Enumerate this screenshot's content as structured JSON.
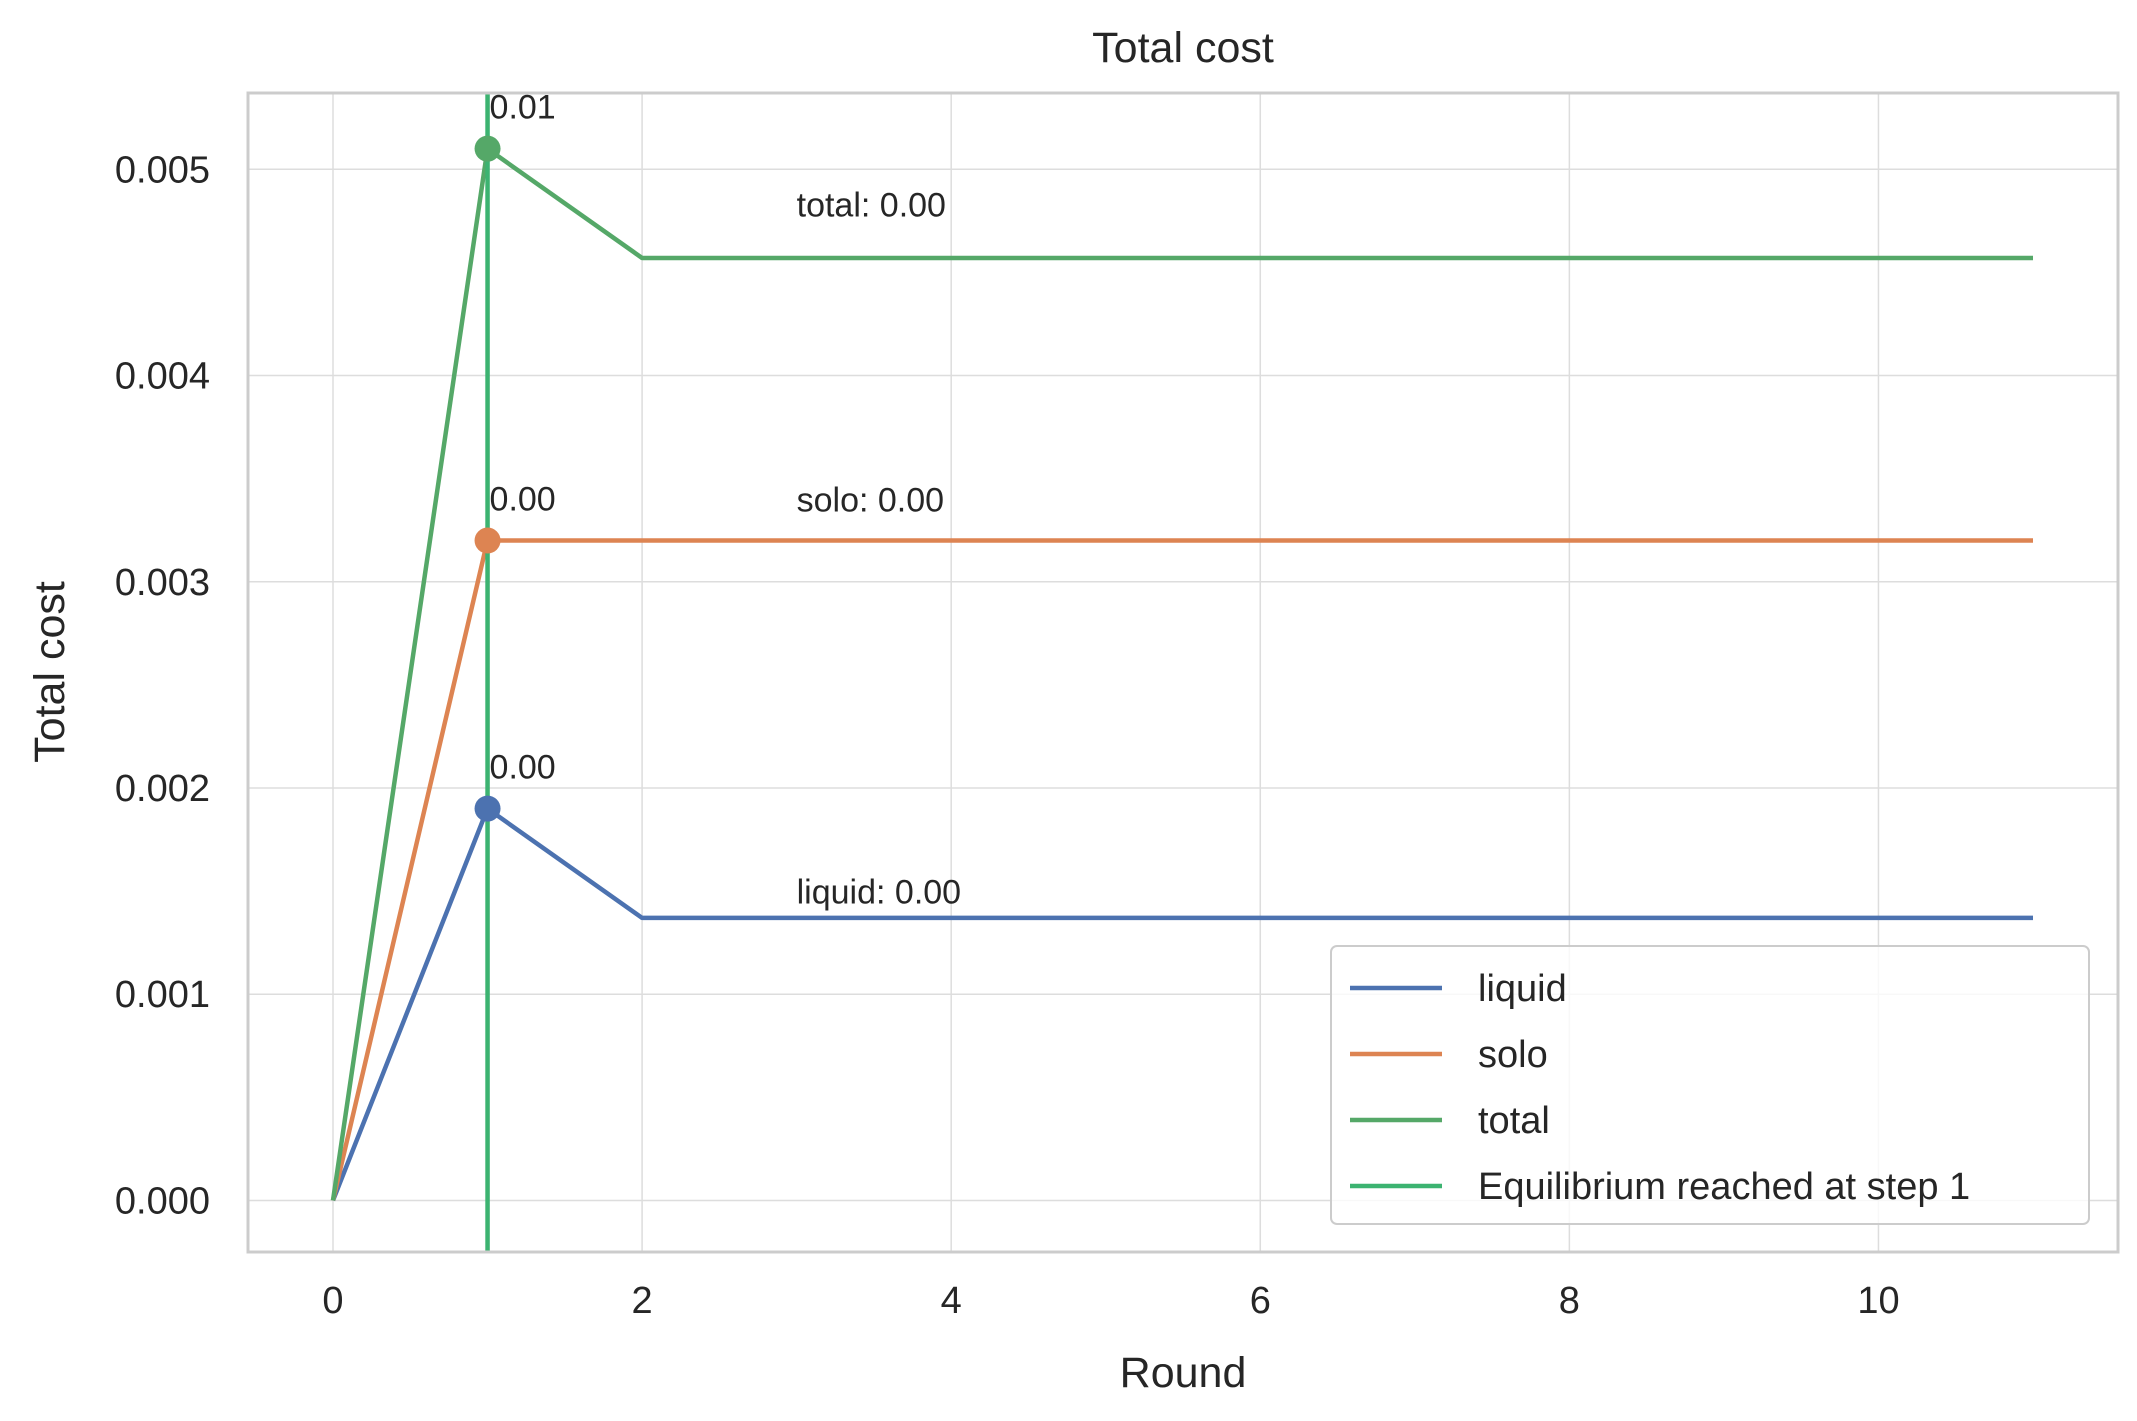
{
  "chart_data": {
    "type": "line",
    "title": "Total cost",
    "xlabel": "Round",
    "ylabel": "Total cost",
    "xlim": [
      -0.55,
      11.55
    ],
    "ylim": [
      -0.00025,
      0.00537
    ],
    "xticks": [
      0,
      2,
      4,
      6,
      8,
      10
    ],
    "xtick_labels": [
      "0",
      "2",
      "4",
      "6",
      "8",
      "10"
    ],
    "yticks": [
      0.0,
      0.001,
      0.002,
      0.003,
      0.004,
      0.005
    ],
    "ytick_labels": [
      "0.000",
      "0.001",
      "0.002",
      "0.003",
      "0.004",
      "0.005"
    ],
    "grid": true,
    "x": [
      0,
      1,
      2,
      3,
      4,
      5,
      6,
      7,
      8,
      9,
      10,
      11
    ],
    "series": [
      {
        "name": "liquid",
        "color": "#4c72b0",
        "values": [
          0.0,
          0.0019,
          0.00137,
          0.00137,
          0.00137,
          0.00137,
          0.00137,
          0.00137,
          0.00137,
          0.00137,
          0.00137,
          0.00137
        ]
      },
      {
        "name": "solo",
        "color": "#dd8452",
        "values": [
          0.0,
          0.0032,
          0.0032,
          0.0032,
          0.0032,
          0.0032,
          0.0032,
          0.0032,
          0.0032,
          0.0032,
          0.0032,
          0.0032
        ]
      },
      {
        "name": "total",
        "color": "#55a868",
        "values": [
          0.0,
          0.0051,
          0.00457,
          0.00457,
          0.00457,
          0.00457,
          0.00457,
          0.00457,
          0.00457,
          0.00457,
          0.00457,
          0.00457
        ]
      }
    ],
    "equilibrium_line": {
      "name": "Equilibrium reached at step 1",
      "x": 1,
      "color": "#3cb371"
    },
    "markers": [
      {
        "series": "liquid",
        "x": 1,
        "y": 0.0019,
        "label": "0.00"
      },
      {
        "series": "solo",
        "x": 1,
        "y": 0.0032,
        "label": "0.00"
      },
      {
        "series": "total",
        "x": 1,
        "y": 0.0051,
        "label": "0.01"
      }
    ],
    "annotations": [
      {
        "text": "total: 0.00",
        "x": 3,
        "y": 0.00477
      },
      {
        "text": "solo: 0.00",
        "x": 3,
        "y": 0.00334
      },
      {
        "text": "liquid: 0.00",
        "x": 3,
        "y": 0.00144
      }
    ],
    "legend": {
      "position": "lower right",
      "entries": [
        {
          "label": "liquid",
          "color": "#4c72b0"
        },
        {
          "label": "solo",
          "color": "#dd8452"
        },
        {
          "label": "total",
          "color": "#55a868"
        },
        {
          "label": "Equilibrium reached at step 1",
          "color": "#3cb371"
        }
      ]
    }
  }
}
